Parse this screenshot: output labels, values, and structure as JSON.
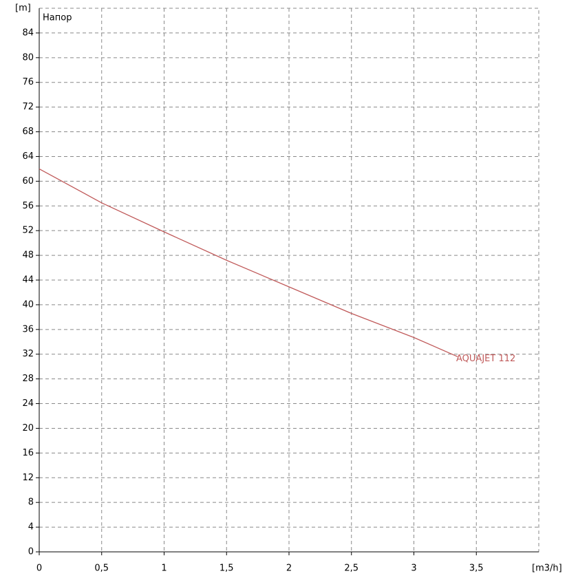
{
  "chart_data": {
    "type": "line",
    "y_label": "[m]",
    "x_label": "[m3/h]",
    "title": "Напор",
    "x": [
      0,
      0.5,
      1,
      1.5,
      2,
      2.5,
      3,
      3.35
    ],
    "series": [
      {
        "name": "AQUAJET 112",
        "color": "#c05a5a",
        "values": [
          62,
          56.5,
          51.8,
          47.2,
          42.9,
          38.6,
          34.7,
          31.6
        ]
      }
    ],
    "xlim": [
      0,
      4
    ],
    "xticks": [
      0,
      {
        "value": 0.5,
        "label": "0,5"
      },
      1,
      {
        "value": 1.5,
        "label": "1,5"
      },
      2,
      {
        "value": 2.5,
        "label": "2,5"
      },
      3,
      {
        "value": 3.5,
        "label": "3,5"
      }
    ],
    "ylim": [
      0,
      88
    ],
    "yticks": [
      0,
      4,
      8,
      12,
      16,
      20,
      24,
      28,
      32,
      36,
      40,
      44,
      48,
      52,
      56,
      60,
      64,
      68,
      72,
      76,
      80,
      84
    ],
    "grid": true
  }
}
